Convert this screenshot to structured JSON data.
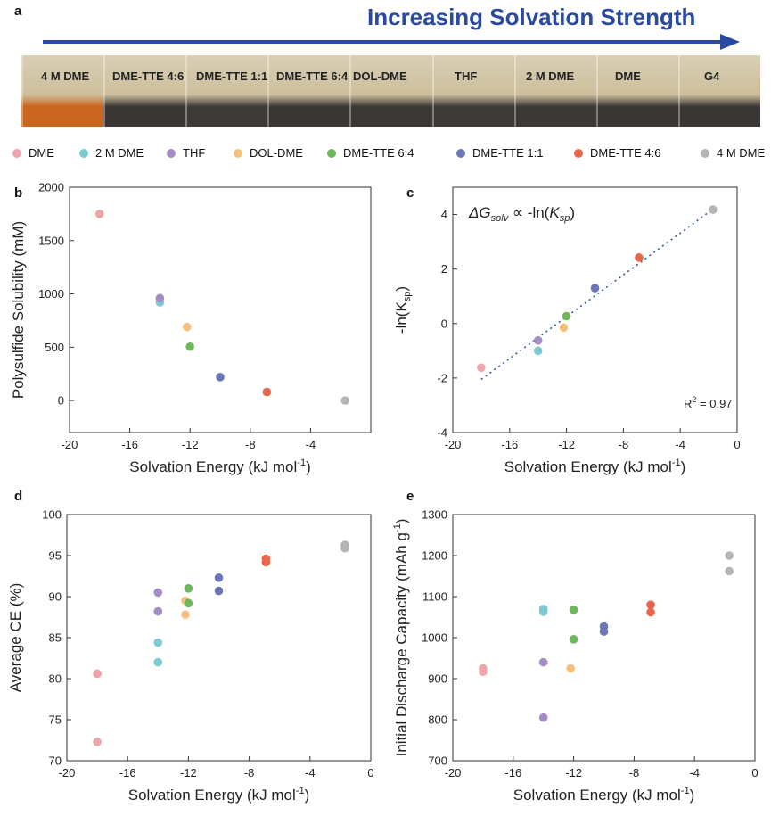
{
  "panels": {
    "a": "a",
    "b": "b",
    "c": "c",
    "d": "d",
    "e": "e"
  },
  "banner": {
    "title": "Increasing Solvation Strength",
    "arrow_color": "#2a4aa0"
  },
  "photo": {
    "vials": [
      {
        "label": "4 M DME",
        "liquid": "#c9661f"
      },
      {
        "label": "DME-TTE 4:6",
        "liquid": "#3a3634"
      },
      {
        "label": "DME-TTE 1:1",
        "liquid": "#3e3a37"
      },
      {
        "label": "DME-TTE 6:4",
        "liquid": "#3a3634"
      },
      {
        "label": "DOL-DME",
        "liquid": "#3b3734"
      },
      {
        "label": "THF",
        "liquid": "#3d3936"
      },
      {
        "label": "2 M DME",
        "liquid": "#3c3835"
      },
      {
        "label": "DME",
        "liquid": "#3a3633"
      },
      {
        "label": "G4",
        "liquid": "#3a3633"
      }
    ]
  },
  "legend": [
    {
      "name": "DME",
      "color": "#f0a3a8"
    },
    {
      "name": "2 M DME",
      "color": "#7ccbd4"
    },
    {
      "name": "THF",
      "color": "#a58cc4"
    },
    {
      "name": "DOL-DME",
      "color": "#f5c27e"
    },
    {
      "name": "DME-TTE 6:4",
      "color": "#6db85a"
    },
    {
      "name": "DME-TTE 1:1",
      "color": "#6b77b8"
    },
    {
      "name": "DME-TTE 4:6",
      "color": "#e8674a"
    },
    {
      "name": "4 M DME",
      "color": "#b5b5b5"
    }
  ],
  "chart_data": [
    {
      "id": "b",
      "type": "scatter",
      "xlabel_main": "Solvation Energy (kJ mol",
      "xlabel_sup": "-1",
      "xlabel_end": ")",
      "ylabel": "Polysulfide Solubility (mM)",
      "xlim": [
        -20,
        0
      ],
      "ylim": [
        -300,
        2000
      ],
      "xticks": [
        -20,
        -16,
        -12,
        -8,
        -4
      ],
      "yticks": [
        0,
        500,
        1000,
        1500,
        2000
      ],
      "xtick_labels": [
        "-20",
        "-16",
        "-12",
        "-8",
        "-4"
      ],
      "ytick_labels": [
        "0",
        "500",
        "1000",
        "1500",
        "2000"
      ],
      "series": [
        {
          "name": "DME",
          "points": [
            [
              -18,
              1750
            ]
          ]
        },
        {
          "name": "2 M DME",
          "points": [
            [
              -14,
              920
            ]
          ]
        },
        {
          "name": "THF",
          "points": [
            [
              -14,
              960
            ]
          ]
        },
        {
          "name": "DOL-DME",
          "points": [
            [
              -12.2,
              690
            ]
          ]
        },
        {
          "name": "DME-TTE 6:4",
          "points": [
            [
              -12,
              505
            ]
          ]
        },
        {
          "name": "DME-TTE 1:1",
          "points": [
            [
              -10,
              220
            ]
          ]
        },
        {
          "name": "DME-TTE 4:6",
          "points": [
            [
              -6.9,
              80
            ]
          ]
        },
        {
          "name": "4 M DME",
          "points": [
            [
              -1.7,
              0
            ]
          ]
        }
      ]
    },
    {
      "id": "c",
      "type": "scatter",
      "xlabel_main": "Solvation Energy (kJ mol",
      "xlabel_sup": "-1",
      "xlabel_end": ")",
      "ylabel_main": "-ln(K",
      "ylabel_sub": "sp",
      "ylabel_end": ")",
      "xlim": [
        -20,
        0
      ],
      "ylim": [
        -4,
        5
      ],
      "xticks": [
        -20,
        -16,
        -12,
        -8,
        -4,
        0
      ],
      "yticks": [
        -4,
        -2,
        0,
        2,
        4
      ],
      "xtick_labels": [
        "-20",
        "-16",
        "-12",
        "-8",
        "-4",
        "0"
      ],
      "ytick_labels": [
        "-4",
        "-2",
        "0",
        "2",
        "4"
      ],
      "annotation_parts": [
        "ΔG",
        "solv",
        " ∝ -ln(",
        "K",
        "sp",
        ")"
      ],
      "r2_parts": [
        "R",
        "2",
        " = 0.97"
      ],
      "fit": {
        "x": [
          -18,
          -1.7
        ],
        "y": [
          -2.05,
          4.2
        ]
      },
      "series": [
        {
          "name": "DME",
          "points": [
            [
              -18,
              -1.62
            ]
          ]
        },
        {
          "name": "2 M DME",
          "points": [
            [
              -14,
              -1.0
            ]
          ]
        },
        {
          "name": "THF",
          "points": [
            [
              -14,
              -0.62
            ]
          ]
        },
        {
          "name": "DOL-DME",
          "points": [
            [
              -12.2,
              -0.15
            ]
          ]
        },
        {
          "name": "DME-TTE 6:4",
          "points": [
            [
              -12,
              0.27
            ]
          ]
        },
        {
          "name": "DME-TTE 1:1",
          "points": [
            [
              -10,
              1.3
            ]
          ]
        },
        {
          "name": "DME-TTE 4:6",
          "points": [
            [
              -6.9,
              2.42
            ]
          ]
        },
        {
          "name": "4 M DME",
          "points": [
            [
              -1.7,
              4.18
            ]
          ]
        }
      ]
    },
    {
      "id": "d",
      "type": "scatter",
      "xlabel_main": "Solvation Energy (kJ mol",
      "xlabel_sup": "-1",
      "xlabel_end": ")",
      "ylabel": "Average CE (%)",
      "xlim": [
        -20,
        0
      ],
      "ylim": [
        70,
        100
      ],
      "xticks": [
        -20,
        -16,
        -12,
        -8,
        -4,
        0
      ],
      "yticks": [
        70,
        75,
        80,
        85,
        90,
        95,
        100
      ],
      "xtick_labels": [
        "-20",
        "-16",
        "-12",
        "-8",
        "-4",
        "0"
      ],
      "ytick_labels": [
        "70",
        "75",
        "80",
        "85",
        "90",
        "95",
        "100"
      ],
      "series": [
        {
          "name": "DME",
          "points": [
            [
              -18,
              80.6
            ],
            [
              -18,
              72.3
            ]
          ]
        },
        {
          "name": "2 M DME",
          "points": [
            [
              -14,
              84.4
            ],
            [
              -14,
              82.0
            ]
          ]
        },
        {
          "name": "THF",
          "points": [
            [
              -14,
              90.5
            ],
            [
              -14,
              88.2
            ]
          ]
        },
        {
          "name": "DOL-DME",
          "points": [
            [
              -12.2,
              89.5
            ],
            [
              -12.2,
              87.8
            ]
          ]
        },
        {
          "name": "DME-TTE 6:4",
          "points": [
            [
              -12,
              91.0
            ],
            [
              -12,
              89.2
            ]
          ]
        },
        {
          "name": "DME-TTE 1:1",
          "points": [
            [
              -10,
              92.3
            ],
            [
              -10,
              90.7
            ]
          ]
        },
        {
          "name": "DME-TTE 4:6",
          "points": [
            [
              -6.9,
              94.6
            ],
            [
              -6.9,
              94.2
            ]
          ]
        },
        {
          "name": "4 M DME",
          "points": [
            [
              -1.7,
              96.3
            ],
            [
              -1.7,
              95.9
            ]
          ]
        }
      ]
    },
    {
      "id": "e",
      "type": "scatter",
      "xlabel_main": "Solvation Energy (kJ mol",
      "xlabel_sup": "-1",
      "xlabel_end": ")",
      "ylabel_main": "Initial Discharge Capacity (mAh g",
      "ylabel_sup": "-1",
      "ylabel_end": ")",
      "xlim": [
        -20,
        0
      ],
      "ylim": [
        700,
        1300
      ],
      "xticks": [
        -20,
        -16,
        -12,
        -8,
        -4,
        0
      ],
      "yticks": [
        700,
        800,
        900,
        1000,
        1100,
        1200,
        1300
      ],
      "xtick_labels": [
        "-20",
        "-16",
        "-12",
        "-8",
        "-4",
        "0"
      ],
      "ytick_labels": [
        "700",
        "800",
        "900",
        "1000",
        "1100",
        "1200",
        "1300"
      ],
      "series": [
        {
          "name": "DME",
          "points": [
            [
              -18,
              925
            ],
            [
              -18,
              917
            ]
          ]
        },
        {
          "name": "2 M DME",
          "points": [
            [
              -14,
              1070
            ],
            [
              -14,
              1063
            ]
          ]
        },
        {
          "name": "THF",
          "points": [
            [
              -14,
              940
            ],
            [
              -14,
              805
            ]
          ]
        },
        {
          "name": "DOL-DME",
          "points": [
            [
              -12.2,
              925
            ]
          ]
        },
        {
          "name": "DME-TTE 6:4",
          "points": [
            [
              -12,
              1068
            ],
            [
              -12,
              996
            ]
          ]
        },
        {
          "name": "DME-TTE 1:1",
          "points": [
            [
              -10,
              1027
            ],
            [
              -10,
              1015
            ]
          ]
        },
        {
          "name": "DME-TTE 4:6",
          "points": [
            [
              -6.9,
              1080
            ],
            [
              -6.9,
              1062
            ]
          ]
        },
        {
          "name": "4 M DME",
          "points": [
            [
              -1.7,
              1200
            ],
            [
              -1.7,
              1162
            ]
          ]
        }
      ]
    }
  ]
}
